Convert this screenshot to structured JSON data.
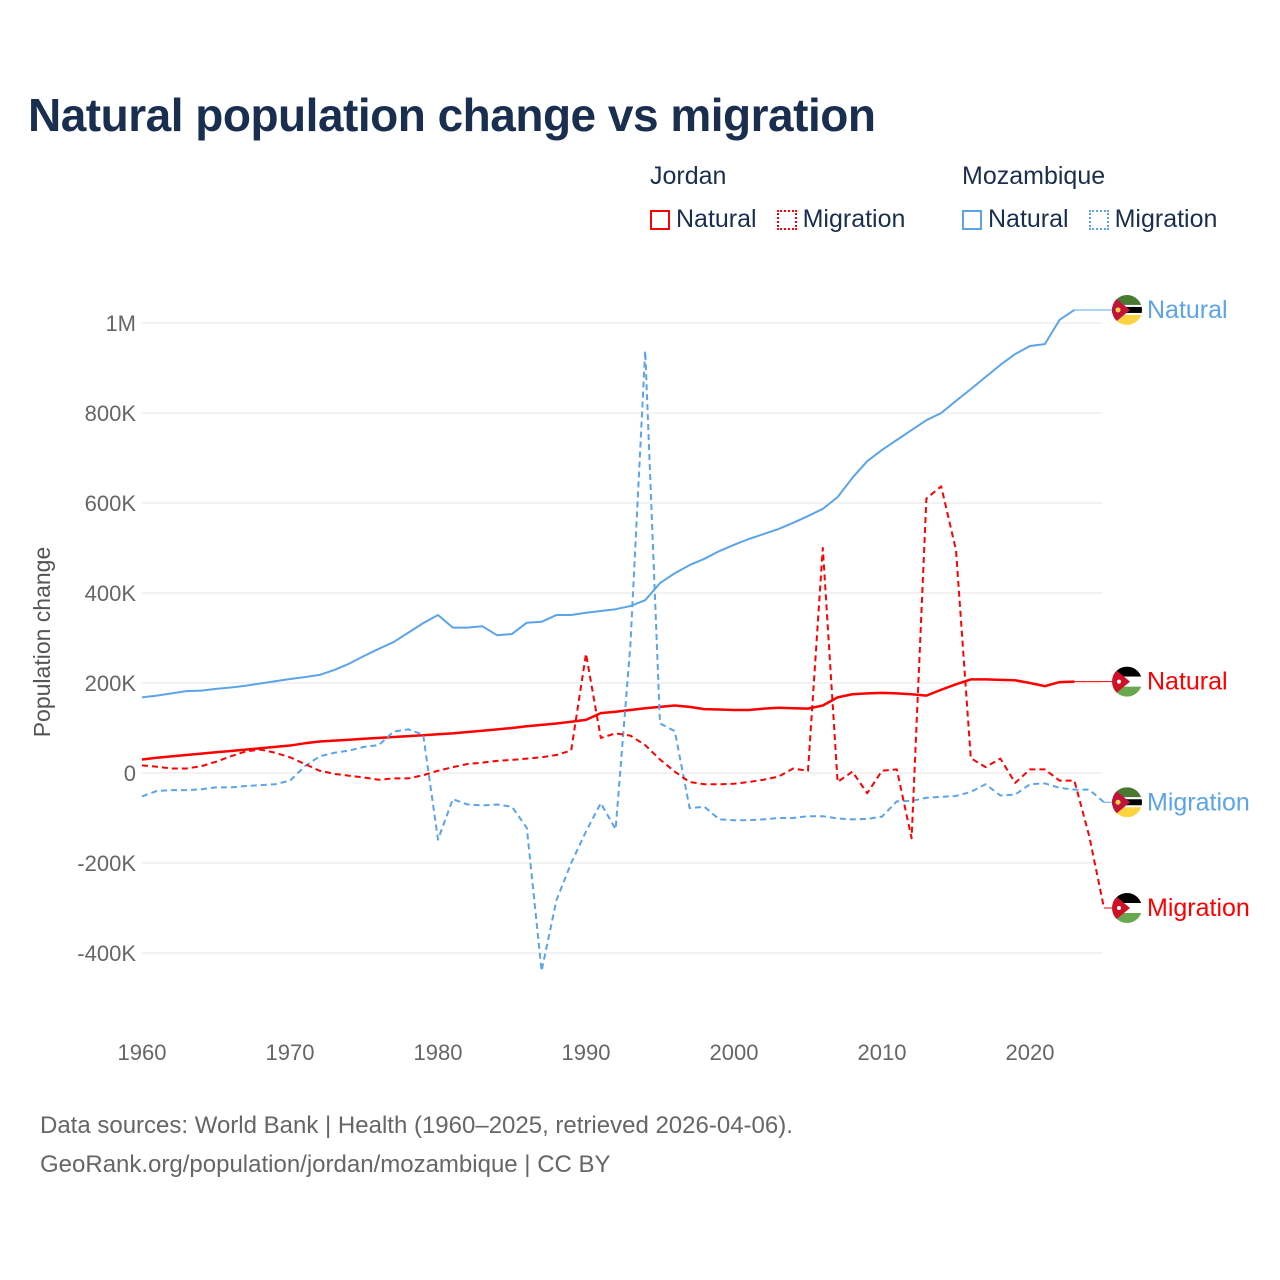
{
  "chart_data": {
    "type": "line",
    "title": "Natural population change vs migration",
    "ylabel": "Population change",
    "xlabel": "",
    "xlim": [
      1960,
      2025
    ],
    "ylim": [
      -450000,
      1050000
    ],
    "x_ticks": [
      1960,
      1970,
      1980,
      1990,
      2000,
      2010,
      2020
    ],
    "y_ticks": [
      -400000,
      -200000,
      0,
      200000,
      400000,
      600000,
      800000,
      1000000
    ],
    "y_tick_labels": [
      "-400K",
      "-200K",
      "0",
      "200K",
      "400K",
      "600K",
      "800K",
      "1M"
    ],
    "grid": true,
    "legend_groups": [
      {
        "country": "Jordan",
        "items": [
          "Natural",
          "Migration"
        ]
      },
      {
        "country": "Mozambique",
        "items": [
          "Natural",
          "Migration"
        ]
      }
    ],
    "series": [
      {
        "name": "Mozambique Natural",
        "country": "Mozambique",
        "label": "Natural",
        "color": "#5ba4ea",
        "dashed": false,
        "start": 1960,
        "values": [
          168,
          172,
          177,
          182,
          183,
          187,
          190,
          194,
          199,
          204,
          209,
          213,
          218,
          229,
          243,
          260,
          276,
          291,
          312,
          333,
          351,
          323,
          323,
          326,
          306,
          309,
          334,
          336,
          351,
          351,
          356,
          360,
          364,
          371,
          384,
          422,
          444,
          462,
          476,
          493,
          507,
          520,
          531,
          542,
          556,
          571,
          587,
          613,
          656,
          693,
          718,
          740,
          762,
          784,
          800,
          827,
          853,
          880,
          907,
          931,
          949,
          953,
          1007,
          1029
        ]
      },
      {
        "name": "Jordan Natural",
        "country": "Jordan",
        "label": "Natural",
        "color": "#ff0000",
        "dashed": false,
        "start": 1960,
        "values": [
          30,
          34,
          37,
          40,
          43,
          46,
          49,
          52,
          55,
          58,
          61,
          66,
          70,
          72,
          74,
          76,
          78,
          80,
          82,
          84,
          86,
          88,
          91,
          94,
          97,
          100,
          104,
          107,
          110,
          114,
          118,
          133,
          136,
          140,
          144,
          147,
          150,
          147,
          142,
          141,
          140,
          140,
          143,
          145,
          144,
          143,
          150,
          168,
          175,
          177,
          178,
          177,
          175,
          172,
          185,
          197,
          208,
          208,
          207,
          206,
          200,
          193,
          202,
          203
        ]
      },
      {
        "name": "Mozambique Migration",
        "country": "Mozambique",
        "label": "Migration",
        "color": "#5ba4ea",
        "dashed": true,
        "start": 1960,
        "values": [
          -52,
          -40,
          -38,
          -38,
          -36,
          -32,
          -32,
          -29,
          -27,
          -25,
          -17,
          15,
          37,
          45,
          50,
          58,
          62,
          92,
          97,
          85,
          -148,
          -58,
          -70,
          -72,
          -70,
          -75,
          -122,
          -440,
          -283,
          -200,
          -130,
          -67,
          -125,
          285,
          938,
          110,
          93,
          -78,
          -75,
          -103,
          -105,
          -105,
          -103,
          -100,
          -100,
          -96,
          -96,
          -101,
          -103,
          -102,
          -97,
          -63,
          -62,
          -55,
          -53,
          -51,
          -42,
          -25,
          -50,
          -48,
          -25,
          -23,
          -33,
          -37,
          -37,
          -65
        ]
      },
      {
        "name": "Jordan Migration",
        "country": "Jordan",
        "label": "Migration",
        "color": "#ff0000",
        "dashed": true,
        "start": 1960,
        "values": [
          17,
          14,
          10,
          10,
          15,
          25,
          37,
          48,
          52,
          45,
          35,
          20,
          5,
          -2,
          -6,
          -10,
          -15,
          -12,
          -12,
          -5,
          5,
          13,
          20,
          23,
          27,
          29,
          32,
          35,
          40,
          50,
          265,
          78,
          88,
          83,
          62,
          30,
          3,
          -20,
          -25,
          -25,
          -24,
          -20,
          -15,
          -8,
          10,
          5,
          500,
          -20,
          3,
          -45,
          5,
          8,
          -145,
          610,
          637,
          495,
          33,
          13,
          32,
          -22,
          8,
          8,
          -17,
          -17,
          -140,
          -300
        ]
      }
    ],
    "value_unit": "thousands"
  },
  "footer": {
    "line1": "Data sources: World Bank | Health (1960–2025, retrieved 2026-04-06).",
    "line2": "GeoRank.org/population/jordan/mozambique | CC BY"
  }
}
